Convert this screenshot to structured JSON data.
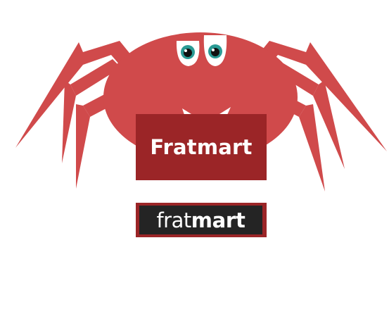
{
  "logo": {
    "sign_text": "Fratmart",
    "wordmark_light": "frat",
    "wordmark_bold": "mart"
  },
  "colors": {
    "crab_body": "#d04a4b",
    "sign_red": "#9b2527",
    "wordmark_bg": "#242424",
    "eye_iris": "#2a9a94",
    "background": "#ffffff"
  }
}
